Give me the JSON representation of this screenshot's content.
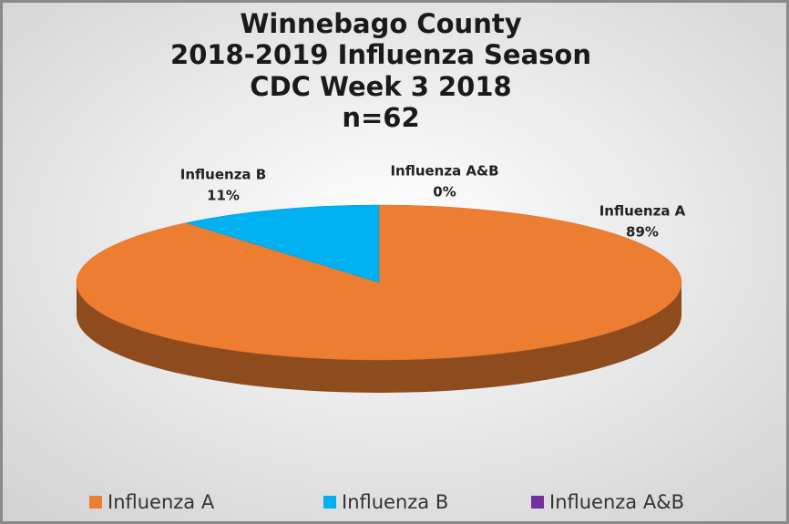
{
  "chart_data": {
    "type": "pie",
    "title": [
      "Winnebago County",
      "2018-2019 Influenza Season",
      "CDC Week 3 2018",
      "n=62"
    ],
    "categories": [
      "Influenza A",
      "Influenza B",
      "Influenza A&B"
    ],
    "values": [
      89,
      11,
      0
    ],
    "value_labels": [
      "89%",
      "11%",
      "0%"
    ],
    "colors": [
      "#ed7d31",
      "#00b0f0",
      "#7030a0"
    ],
    "legend": "bottom"
  }
}
